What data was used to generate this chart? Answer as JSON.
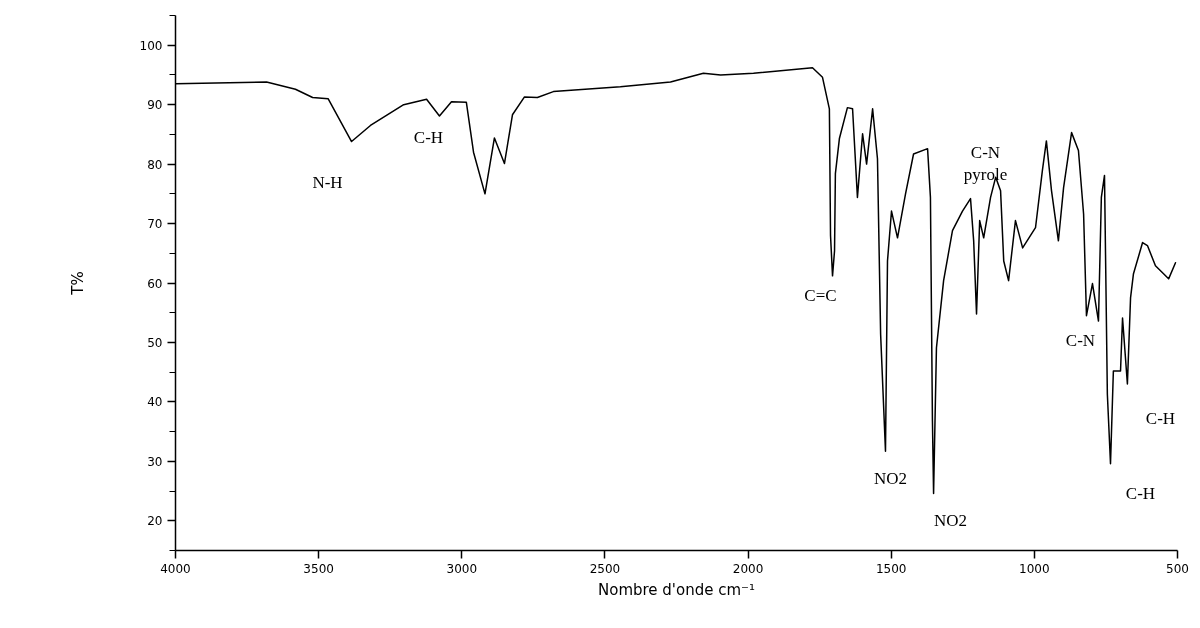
{
  "chart_data": {
    "type": "line",
    "xlabel": "Nombre d'onde cm⁻¹",
    "ylabel": "T%",
    "xlim": [
      4000,
      500
    ],
    "ylim": [
      15,
      105
    ],
    "xticks": [
      4000,
      3500,
      3000,
      2500,
      2000,
      1500,
      1000,
      500
    ],
    "yticks": [
      {
        "value": 15,
        "label": null
      },
      20,
      {
        "value": 25,
        "label": null
      },
      30,
      {
        "value": 35,
        "label": null
      },
      40,
      {
        "value": 45,
        "label": null
      },
      50,
      {
        "value": 55,
        "label": null
      },
      60,
      {
        "value": 65,
        "label": null
      },
      70,
      {
        "value": 75,
        "label": null
      },
      80,
      {
        "value": 85,
        "label": null
      },
      90,
      {
        "value": 95,
        "label": null
      },
      100,
      {
        "value": 105,
        "label": null
      }
    ],
    "grid": false,
    "marker": "none",
    "line_style": "solid",
    "series": [
      {
        "color": "#000000",
        "x": [
          4000,
          3682,
          3581,
          3521,
          3467,
          3385,
          3319,
          3203,
          3123,
          3078,
          3036,
          2984,
          2959,
          2919,
          2886,
          2851,
          2823,
          2781,
          2736,
          2680,
          2446,
          2271,
          2156,
          2096,
          1981,
          1775,
          1740,
          1716,
          1712,
          1705,
          1698,
          1695,
          1681,
          1653,
          1635,
          1618,
          1600,
          1586,
          1565,
          1548,
          1537,
          1520,
          1513,
          1499,
          1478,
          1450,
          1422,
          1373,
          1363,
          1356,
          1352,
          1342,
          1317,
          1286,
          1251,
          1223,
          1212,
          1202,
          1191,
          1177,
          1153,
          1135,
          1118,
          1107,
          1090,
          1066,
          1041,
          996,
          972,
          958,
          940,
          916,
          898,
          870,
          846,
          828,
          818,
          797,
          776,
          766,
          755,
          745,
          734,
          724,
          699,
          692,
          675,
          664,
          654,
          622,
          605,
          577,
          531,
          507
        ],
        "values": [
          93.5,
          93.8,
          92.6,
          91.2,
          91.0,
          83.8,
          86.5,
          90.0,
          90.9,
          88.1,
          90.5,
          90.4,
          82.0,
          75.0,
          84.4,
          80.1,
          88.3,
          91.3,
          91.2,
          92.2,
          93.0,
          93.8,
          95.3,
          95.0,
          95.3,
          96.2,
          94.6,
          89.3,
          68.0,
          61.2,
          65.4,
          78.4,
          84.3,
          89.5,
          89.3,
          74.4,
          85.1,
          80.0,
          89.3,
          80.9,
          51.4,
          31.7,
          63.7,
          72.1,
          67.6,
          75.0,
          81.7,
          82.6,
          74.4,
          36.8,
          24.6,
          49.1,
          60.4,
          68.8,
          72.1,
          74.2,
          67.1,
          54.8,
          70.5,
          67.6,
          74.4,
          77.8,
          75.5,
          63.7,
          60.4,
          70.5,
          65.9,
          69.3,
          78.9,
          83.9,
          75.5,
          67.1,
          76.0,
          85.3,
          82.3,
          71.6,
          54.5,
          59.9,
          53.6,
          74.4,
          78.1,
          41.3,
          29.6,
          45.2,
          45.2,
          54.1,
          43.0,
          57.5,
          61.5,
          66.8,
          66.3,
          62.9,
          60.7,
          63.4
        ]
      }
    ],
    "annotations": [
      "N-H",
      "C-H",
      "C=C",
      "NO2",
      "NO2",
      "C-N\npyrole",
      "C-N",
      "C-H",
      "C-H"
    ]
  }
}
